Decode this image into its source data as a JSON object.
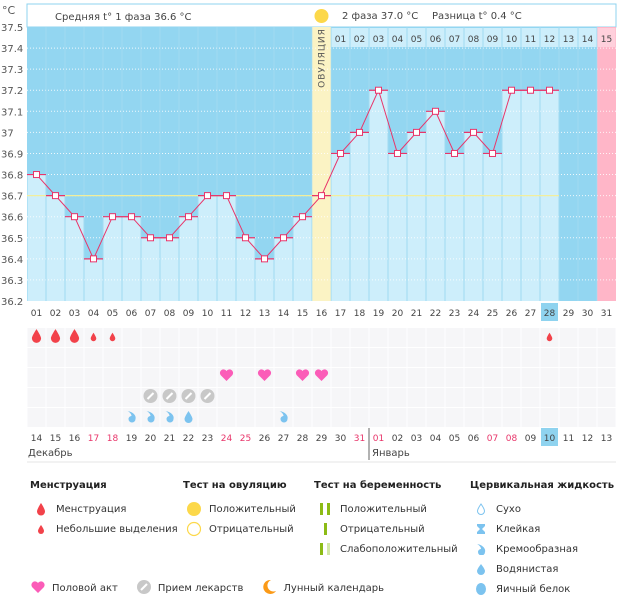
{
  "header": {
    "unit": "°C",
    "phase1": "Средняя t° 1 фаза 36.6 °C",
    "phase2": "2 фаза 37.0 °C",
    "diff": "Разница t° 0.4 °C",
    "ovulation_label": "ОВУЛЯЦИЯ"
  },
  "colors": {
    "above": "#93d6f1",
    "below": "#cdeefb",
    "line": "#e8356a",
    "ovulation": "#fbf3c4",
    "period_next": "#ffb6c8",
    "coverline": "#f2ee9c",
    "highlight": "#8fd3ef",
    "weekend": "#e8356a"
  },
  "chart_data": {
    "type": "line",
    "title": "",
    "ylabel": "°C",
    "ylim": [
      36.2,
      37.5
    ],
    "yticks": [
      "37.5",
      "37.4",
      "37.3",
      "37.2",
      "37.1",
      "37",
      "36.9",
      "36.8",
      "36.7",
      "36.6",
      "36.5",
      "36.4",
      "36.3",
      "36.2"
    ],
    "cycle_days": [
      "01",
      "02",
      "03",
      "04",
      "05",
      "06",
      "07",
      "08",
      "09",
      "10",
      "11",
      "12",
      "13",
      "14",
      "15",
      "16",
      "17",
      "18",
      "19",
      "20",
      "21",
      "22",
      "23",
      "24",
      "25",
      "26",
      "27",
      "28",
      "29",
      "30",
      "31"
    ],
    "temperatures": [
      36.8,
      36.7,
      36.6,
      36.4,
      36.6,
      36.6,
      36.5,
      36.5,
      36.6,
      36.7,
      36.7,
      36.5,
      36.4,
      36.5,
      36.6,
      36.7,
      36.9,
      37.0,
      37.2,
      36.9,
      37.0,
      37.1,
      36.9,
      37.0,
      36.9,
      37.2,
      37.2,
      37.2,
      null,
      null,
      null
    ],
    "coverline": 36.7,
    "ovulation_day": 16,
    "expected_period_day": 31,
    "today_cycle_day": 28,
    "phase2_days": [
      "01",
      "02",
      "03",
      "04",
      "05",
      "06",
      "07",
      "08",
      "09",
      "10",
      "11",
      "12",
      "13",
      "14",
      "15"
    ],
    "calendar_dates": [
      "14",
      "15",
      "16",
      "17",
      "18",
      "19",
      "20",
      "21",
      "22",
      "23",
      "24",
      "25",
      "26",
      "27",
      "28",
      "29",
      "30",
      "31",
      "01",
      "02",
      "03",
      "04",
      "05",
      "06",
      "07",
      "08",
      "09",
      "10",
      "11",
      "12",
      "13"
    ],
    "weekend_indices": [
      3,
      4,
      10,
      11,
      17,
      18,
      24,
      25
    ],
    "months": [
      {
        "label": "Декабрь",
        "start": 0
      },
      {
        "label": "Январь",
        "start": 18
      }
    ],
    "menstruation": {
      "heavy": [
        1,
        2,
        3
      ],
      "light": [
        4,
        5,
        28
      ]
    },
    "intercourse": [
      11,
      13,
      15,
      16
    ],
    "medication": [
      7,
      8,
      9,
      10
    ],
    "cervical": {
      "creamy": [
        6,
        7,
        8,
        14
      ],
      "watery": [
        9
      ]
    }
  },
  "legend": {
    "menstruation": {
      "title": "Менструация",
      "items": [
        "Менструация",
        "Небольшие выделения"
      ]
    },
    "ovulation_test": {
      "title": "Тест на овуляцию",
      "items": [
        "Положительный",
        "Отрицательный"
      ]
    },
    "pregnancy_test": {
      "title": "Тест на беременность",
      "items": [
        "Положительный",
        "Отрицательный",
        "Слабоположительный"
      ]
    },
    "cervical": {
      "title": "Цервикальная жидкость",
      "items": [
        "Сухо",
        "Клейкая",
        "Кремообразная",
        "Водянистая",
        "Яичный белок"
      ]
    },
    "bottom": [
      "Половой акт",
      "Прием лекарств",
      "Лунный календарь"
    ]
  }
}
